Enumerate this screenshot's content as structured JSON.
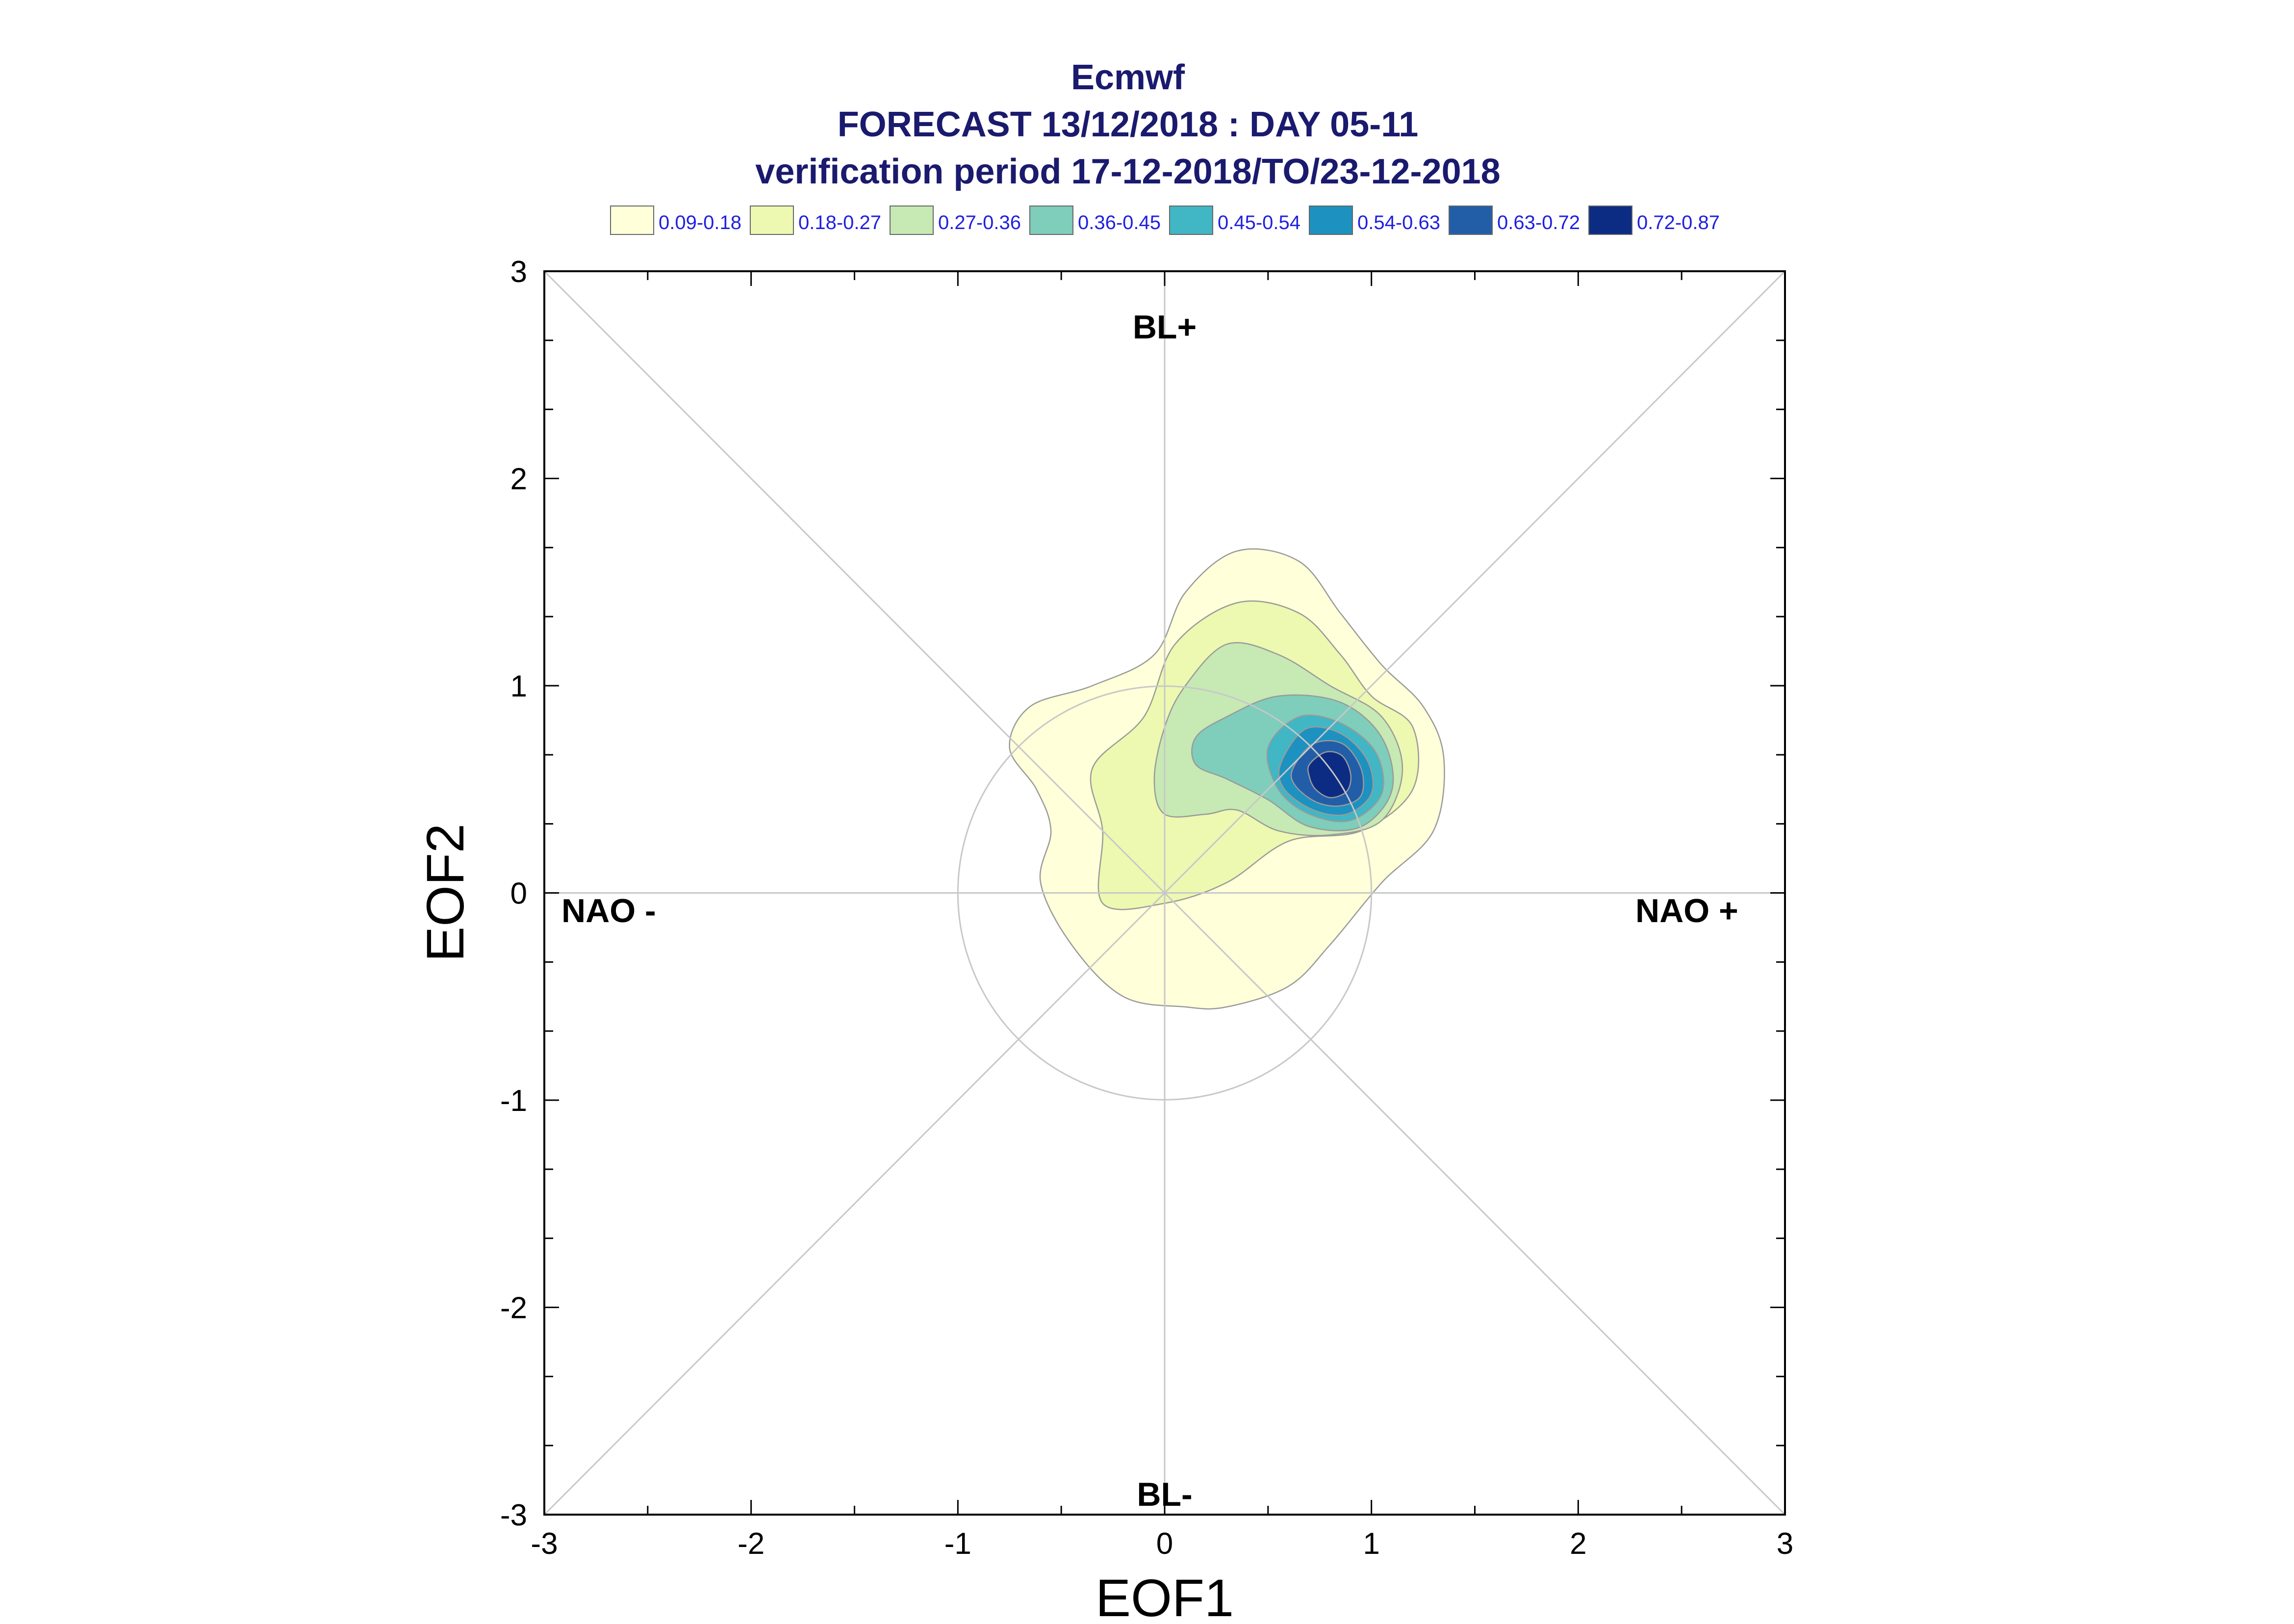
{
  "chart_data": {
    "type": "contour",
    "title": "Ecmwf",
    "subtitle_1": "FORECAST 13/12/2018 : DAY 05-11",
    "subtitle_2": "verification period 17-12-2018/TO/23-12-2018",
    "xlabel": "EOF1",
    "ylabel": "EOF2",
    "xlim": [
      -3,
      3
    ],
    "ylim": [
      -3,
      3
    ],
    "x_ticks": [
      -3,
      -2,
      -1,
      0,
      1,
      2,
      3
    ],
    "y_ticks": [
      -3,
      -2,
      -1,
      0,
      1,
      2,
      3
    ],
    "reference_circle_radius": 1,
    "diagonals": true,
    "regime_labels": {
      "top": "BL+",
      "bottom": "BL-",
      "left": "NAO -",
      "right": "NAO +"
    },
    "legend": [
      {
        "label": "0.09-0.18",
        "color": "#ffffd9"
      },
      {
        "label": "0.18-0.27",
        "color": "#edf8b1"
      },
      {
        "label": "0.27-0.36",
        "color": "#c7e9b4"
      },
      {
        "label": "0.36-0.45",
        "color": "#7fcdbb"
      },
      {
        "label": "0.45-0.54",
        "color": "#41b6c4"
      },
      {
        "label": "0.54-0.63",
        "color": "#1d91c0"
      },
      {
        "label": "0.63-0.72",
        "color": "#225ea8"
      },
      {
        "label": "0.72-0.87",
        "color": "#0c2c84"
      }
    ],
    "density_peak": [
      0.8,
      0.58
    ],
    "contours": [
      {
        "level": "0.09-0.18",
        "points": [
          [
            -0.35,
            1.0
          ],
          [
            -0.05,
            1.15
          ],
          [
            0.1,
            1.45
          ],
          [
            0.35,
            1.65
          ],
          [
            0.65,
            1.6
          ],
          [
            0.85,
            1.35
          ],
          [
            1.05,
            1.1
          ],
          [
            1.25,
            0.9
          ],
          [
            1.35,
            0.65
          ],
          [
            1.3,
            0.3
          ],
          [
            1.05,
            0.05
          ],
          [
            0.8,
            -0.25
          ],
          [
            0.6,
            -0.45
          ],
          [
            0.3,
            -0.55
          ],
          [
            0.1,
            -0.55
          ],
          [
            -0.2,
            -0.5
          ],
          [
            -0.45,
            -0.25
          ],
          [
            -0.6,
            0.05
          ],
          [
            -0.55,
            0.3
          ],
          [
            -0.62,
            0.5
          ],
          [
            -0.75,
            0.7
          ],
          [
            -0.65,
            0.9
          ]
        ]
      },
      {
        "level": "0.18-0.27",
        "points": [
          [
            -0.1,
            0.85
          ],
          [
            0.05,
            1.2
          ],
          [
            0.35,
            1.4
          ],
          [
            0.65,
            1.35
          ],
          [
            0.85,
            1.15
          ],
          [
            1.0,
            0.95
          ],
          [
            1.2,
            0.8
          ],
          [
            1.2,
            0.5
          ],
          [
            0.95,
            0.3
          ],
          [
            0.6,
            0.25
          ],
          [
            0.3,
            0.05
          ],
          [
            0.0,
            -0.05
          ],
          [
            -0.3,
            -0.05
          ],
          [
            -0.3,
            0.3
          ],
          [
            -0.35,
            0.6
          ]
        ]
      },
      {
        "level": "0.27-0.36",
        "points": [
          [
            0.1,
            1.0
          ],
          [
            0.3,
            1.2
          ],
          [
            0.55,
            1.15
          ],
          [
            0.8,
            1.0
          ],
          [
            1.05,
            0.85
          ],
          [
            1.15,
            0.6
          ],
          [
            1.05,
            0.35
          ],
          [
            0.8,
            0.28
          ],
          [
            0.55,
            0.3
          ],
          [
            0.35,
            0.4
          ],
          [
            0.2,
            0.38
          ],
          [
            0.0,
            0.38
          ],
          [
            -0.05,
            0.55
          ],
          [
            0.0,
            0.8
          ]
        ]
      },
      {
        "level": "0.36-0.45",
        "points": [
          [
            0.15,
            0.75
          ],
          [
            0.3,
            0.85
          ],
          [
            0.55,
            0.95
          ],
          [
            0.85,
            0.92
          ],
          [
            1.05,
            0.75
          ],
          [
            1.1,
            0.5
          ],
          [
            0.95,
            0.32
          ],
          [
            0.7,
            0.32
          ],
          [
            0.5,
            0.45
          ],
          [
            0.3,
            0.55
          ],
          [
            0.15,
            0.62
          ]
        ]
      },
      {
        "level": "0.45-0.54",
        "points": [
          [
            0.5,
            0.7
          ],
          [
            0.65,
            0.85
          ],
          [
            0.85,
            0.82
          ],
          [
            1.02,
            0.68
          ],
          [
            1.05,
            0.48
          ],
          [
            0.9,
            0.35
          ],
          [
            0.7,
            0.38
          ],
          [
            0.55,
            0.5
          ]
        ]
      },
      {
        "level": "0.54-0.63",
        "points": [
          [
            0.56,
            0.62
          ],
          [
            0.68,
            0.79
          ],
          [
            0.85,
            0.77
          ],
          [
            0.98,
            0.64
          ],
          [
            1.0,
            0.48
          ],
          [
            0.88,
            0.38
          ],
          [
            0.72,
            0.4
          ],
          [
            0.58,
            0.5
          ]
        ]
      },
      {
        "level": "0.63-0.72",
        "points": [
          [
            0.62,
            0.6
          ],
          [
            0.72,
            0.72
          ],
          [
            0.86,
            0.72
          ],
          [
            0.95,
            0.6
          ],
          [
            0.95,
            0.47
          ],
          [
            0.85,
            0.42
          ],
          [
            0.73,
            0.44
          ],
          [
            0.63,
            0.52
          ]
        ]
      },
      {
        "level": "0.72-0.87",
        "points": [
          [
            0.7,
            0.62
          ],
          [
            0.78,
            0.68
          ],
          [
            0.86,
            0.66
          ],
          [
            0.9,
            0.57
          ],
          [
            0.88,
            0.49
          ],
          [
            0.8,
            0.46
          ],
          [
            0.73,
            0.5
          ],
          [
            0.7,
            0.56
          ]
        ]
      }
    ]
  }
}
